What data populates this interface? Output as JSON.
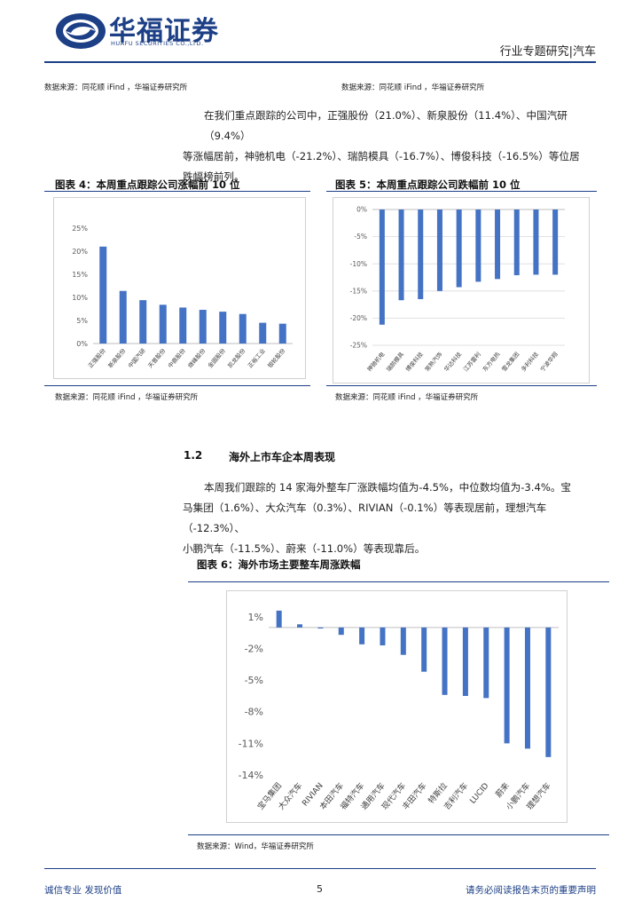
{
  "header": {
    "company_cn": "华福证券",
    "company_en": "HUAFU SECURITIES CO.,LTD.",
    "report_type": "行业专题研究|汽车"
  },
  "top_sources": {
    "left": "数据来源：同花顺 iFind ，华福证券研究所",
    "right": "数据来源：同花顺 iFind ，华福证券研究所"
  },
  "paragraph1": {
    "line1": "在我们重点跟踪的公司中，正强股份（21.0%）、新泉股份（11.4%）、中国汽研（9.4%）",
    "line2": "等涨幅居前，神驰机电（-21.2%）、瑞鹄模具（-16.7%）、博俊科技（-16.5%）等位居",
    "line3": "跌幅榜前列。"
  },
  "fig4": {
    "title": "图表 4：本周重点跟踪公司涨幅前 10 位",
    "source": "数据来源：同花顺 iFind ，华福证券研究所"
  },
  "fig5": {
    "title": "图表 5：本周重点跟踪公司跌幅前 10 位",
    "source": "数据来源：同花顺 iFind ，华福证券研究所"
  },
  "section": {
    "number": "1.2",
    "title": "海外上市车企本周表现"
  },
  "paragraph2": {
    "line1": "本周我们跟踪的 14 家海外整车厂涨跌幅均值为-4.5%，中位数均值为-3.4%。宝",
    "line2": "马集团（1.6%）、大众汽车（0.3%）、RIVIAN（-0.1%）等表现居前，理想汽车（-12.3%）、",
    "line3": "小鹏汽车（-11.5%）、蔚来（-11.0%）等表现靠后。"
  },
  "fig6": {
    "title": "图表 6：海外市场主要整车周涨跌幅",
    "source": "数据来源：Wind，华福证券研究所"
  },
  "footer": {
    "left": "诚信专业  发现价值",
    "page": "5",
    "right": "请务必阅读报告末页的重要声明"
  },
  "colors": {
    "brand": "#1c3f86",
    "bar": "#4472c4"
  },
  "chart_data": [
    {
      "type": "bar",
      "categories": [
        "正强股份",
        "新泉股份",
        "中国汽研",
        "天普股份",
        "中鼎股份",
        "继峰股份",
        "金固股份",
        "凯龙股份",
        "正裕工业",
        "银轮股份"
      ],
      "values": [
        21.0,
        11.4,
        9.4,
        8.4,
        7.8,
        7.3,
        6.9,
        6.4,
        4.5,
        4.3
      ],
      "ylim": [
        0,
        25
      ],
      "yticks": [
        "0%",
        "5%",
        "10%",
        "15%",
        "20%",
        "25%"
      ],
      "grid": false
    },
    {
      "type": "bar",
      "categories": [
        "神驰机电",
        "瑞鹄模具",
        "博俊科技",
        "常熟汽饰",
        "华达科技",
        "江苏雷利",
        "东方电热",
        "雪龙集团",
        "多利科技",
        "宁波华翔"
      ],
      "values": [
        -21.2,
        -16.7,
        -16.5,
        -15.0,
        -14.3,
        -13.3,
        -12.8,
        -12.1,
        -12.0,
        -12.0
      ],
      "ylim": [
        -25,
        0
      ],
      "yticks": [
        "0%",
        "-5%",
        "-10%",
        "-15%",
        "-20%",
        "-25%"
      ],
      "grid": true
    },
    {
      "type": "bar",
      "categories": [
        "宝马集团",
        "大众汽车",
        "RIVIAN",
        "本田汽车",
        "福特汽车",
        "通用汽车",
        "现代汽车",
        "丰田汽车",
        "特斯拉",
        "吉利汽车",
        "LUCID",
        "蔚来",
        "小鹏汽车",
        "理想汽车"
      ],
      "values": [
        1.6,
        0.3,
        -0.1,
        -0.7,
        -1.6,
        -1.7,
        -2.6,
        -4.2,
        -6.4,
        -6.5,
        -6.7,
        -11.0,
        -11.5,
        -12.3
      ],
      "ylim": [
        -14,
        1
      ],
      "yticks": [
        "1%",
        "-2%",
        "-5%",
        "-8%",
        "-11%",
        "-14%"
      ],
      "grid": false
    }
  ]
}
